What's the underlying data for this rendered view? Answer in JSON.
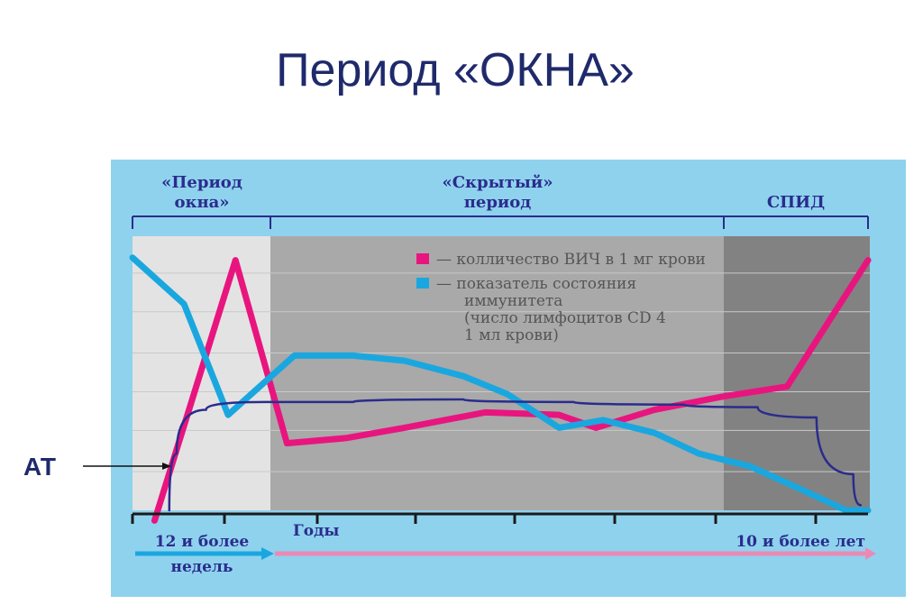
{
  "slide": {
    "title": "Период «ОКНА»"
  },
  "annotation": {
    "label": "АТ"
  },
  "chart_data": {
    "type": "line",
    "title": "",
    "phases": [
      {
        "label_line1": "«Период",
        "label_line2": "окна»"
      },
      {
        "label_line1": "«Скрытый»",
        "label_line2": "период"
      },
      {
        "label_line1": "СПИД",
        "label_line2": ""
      }
    ],
    "legend": {
      "position": "top-right",
      "items": [
        {
          "marker_color": "#e8157f",
          "line1": "— колличество ВИЧ в 1 мг крови",
          "line2": "",
          "line3": "",
          "line4": ""
        },
        {
          "marker_color": "#1aa7df",
          "line1": "— показатель состояния",
          "line2": "иммунитета",
          "line3": "(число лимфоцитов CD 4",
          "line4": "1 мл крови)"
        }
      ]
    },
    "x_axis": {
      "label_years": "Годы",
      "label_weeks_line1": "12 и более",
      "label_weeks_line2": "недель",
      "label_end": "10 и более лет"
    },
    "x_range": [
      0,
      100
    ],
    "y_range": [
      0,
      100
    ],
    "series": [
      {
        "name": "колличество ВИЧ в 1 мг крови",
        "color": "#e8157f",
        "x": [
          3,
          14,
          21,
          29,
          37,
          48,
          58,
          63,
          71,
          80,
          89,
          100
        ],
        "y": [
          -4,
          97,
          26,
          28,
          32,
          38,
          37,
          32,
          39,
          44,
          48,
          97
        ]
      },
      {
        "name": "показатель состояния иммунитета (число лимфоцитов CD 4 1 мл крови)",
        "color": "#1aa7df",
        "x": [
          0,
          7,
          13,
          22,
          30,
          37,
          45,
          51,
          58,
          64,
          71,
          77,
          84,
          91,
          97,
          100
        ],
        "y": [
          98,
          80,
          37,
          60,
          60,
          58,
          52,
          45,
          32,
          35,
          30,
          22,
          17,
          8,
          0,
          0
        ]
      },
      {
        "name": "АТ",
        "color": "#2a2c8c",
        "x": [
          5,
          6,
          10,
          18,
          30,
          45,
          60,
          75,
          85,
          93,
          98,
          99
        ],
        "y": [
          0,
          22,
          39,
          42,
          42,
          43,
          42,
          41,
          40,
          36,
          14,
          2
        ]
      }
    ],
    "grid": true,
    "gridlines_y": [
      15,
      31,
      46,
      61,
      77,
      92
    ]
  }
}
